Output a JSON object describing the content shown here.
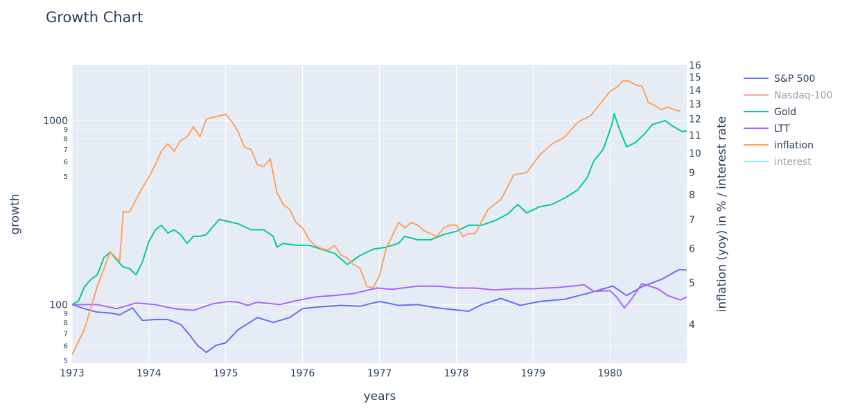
{
  "chart_data": {
    "type": "line",
    "title": "Growth Chart",
    "xlabel": "years",
    "ylabel": "growth",
    "y2label": "inflation (yoy) in % / interest rate",
    "x_range": [
      "1973-01-01",
      "1980-12-31"
    ],
    "y_scale": "log",
    "y_range": [
      48,
      2000
    ],
    "y_major_ticks": [
      100,
      1000
    ],
    "y_minor_ticks": [
      5,
      6,
      7,
      8,
      9,
      50,
      60,
      70,
      80,
      90,
      500,
      600,
      700,
      800,
      900
    ],
    "y2_scale": "log",
    "y2_range": [
      3.25,
      16
    ],
    "y2_ticks": [
      4,
      5,
      6,
      7,
      8,
      9,
      10,
      11,
      12,
      13,
      14,
      15,
      16
    ],
    "x_ticks": [
      "1973",
      "1974",
      "1975",
      "1976",
      "1977",
      "1978",
      "1979",
      "1980"
    ],
    "grid": true,
    "legend_placement": "right-top",
    "series": [
      {
        "name": "S&P 500",
        "axis": "y",
        "color": "#636efa",
        "visible": true,
        "points": [
          [
            "1973-01-01",
            100
          ],
          [
            "1973-03-01",
            95
          ],
          [
            "1973-05-01",
            91
          ],
          [
            "1973-07-01",
            90
          ],
          [
            "1973-08-15",
            88
          ],
          [
            "1973-10-15",
            96
          ],
          [
            "1973-12-01",
            82
          ],
          [
            "1974-02-01",
            83
          ],
          [
            "1974-04-01",
            83
          ],
          [
            "1974-06-01",
            78
          ],
          [
            "1974-07-15",
            68
          ],
          [
            "1974-08-20",
            60
          ],
          [
            "1974-10-01",
            55
          ],
          [
            "1974-11-15",
            60
          ],
          [
            "1975-01-01",
            62
          ],
          [
            "1975-03-01",
            73
          ],
          [
            "1975-06-01",
            85
          ],
          [
            "1975-08-15",
            80
          ],
          [
            "1975-11-01",
            85
          ],
          [
            "1976-01-01",
            95
          ],
          [
            "1976-03-15",
            97
          ],
          [
            "1976-07-01",
            99
          ],
          [
            "1976-10-01",
            98
          ],
          [
            "1977-01-01",
            104
          ],
          [
            "1977-04-01",
            99
          ],
          [
            "1977-07-01",
            100
          ],
          [
            "1977-10-01",
            96
          ],
          [
            "1978-03-01",
            92
          ],
          [
            "1978-05-01",
            100
          ],
          [
            "1978-08-01",
            108
          ],
          [
            "1978-11-01",
            99
          ],
          [
            "1979-02-01",
            104
          ],
          [
            "1979-06-01",
            107
          ],
          [
            "1979-09-15",
            115
          ],
          [
            "1980-01-15",
            126
          ],
          [
            "1980-03-20",
            112
          ],
          [
            "1980-06-01",
            125
          ],
          [
            "1980-09-01",
            137
          ],
          [
            "1980-11-25",
            155
          ],
          [
            "1980-12-31",
            154
          ]
        ]
      },
      {
        "name": "Nasdaq-100",
        "axis": "y",
        "color": "#ef553b",
        "visible": false,
        "points": []
      },
      {
        "name": "Gold",
        "axis": "y",
        "color": "#00cc96",
        "visible": true,
        "points": [
          [
            "1973-01-01",
            100
          ],
          [
            "1973-02-01",
            105
          ],
          [
            "1973-03-01",
            125
          ],
          [
            "1973-04-01",
            137
          ],
          [
            "1973-05-01",
            145
          ],
          [
            "1973-06-01",
            180
          ],
          [
            "1973-07-01",
            193
          ],
          [
            "1973-08-01",
            175
          ],
          [
            "1973-09-01",
            160
          ],
          [
            "1973-10-01",
            157
          ],
          [
            "1973-11-01",
            145
          ],
          [
            "1973-12-01",
            170
          ],
          [
            "1974-01-01",
            220
          ],
          [
            "1974-02-01",
            255
          ],
          [
            "1974-03-01",
            270
          ],
          [
            "1974-04-01",
            245
          ],
          [
            "1974-05-01",
            255
          ],
          [
            "1974-06-01",
            240
          ],
          [
            "1974-07-01",
            215
          ],
          [
            "1974-08-01",
            235
          ],
          [
            "1974-09-01",
            235
          ],
          [
            "1974-10-01",
            240
          ],
          [
            "1974-11-01",
            265
          ],
          [
            "1974-12-01",
            290
          ],
          [
            "1975-01-01",
            285
          ],
          [
            "1975-03-01",
            275
          ],
          [
            "1975-05-01",
            255
          ],
          [
            "1975-07-01",
            255
          ],
          [
            "1975-08-15",
            235
          ],
          [
            "1975-09-01",
            205
          ],
          [
            "1975-10-01",
            215
          ],
          [
            "1975-12-01",
            210
          ],
          [
            "1976-02-01",
            210
          ],
          [
            "1976-04-01",
            200
          ],
          [
            "1976-06-01",
            190
          ],
          [
            "1976-08-01",
            165
          ],
          [
            "1976-10-01",
            185
          ],
          [
            "1976-12-01",
            200
          ],
          [
            "1977-02-01",
            205
          ],
          [
            "1977-04-01",
            215
          ],
          [
            "1977-05-01",
            235
          ],
          [
            "1977-07-01",
            225
          ],
          [
            "1977-09-01",
            225
          ],
          [
            "1977-11-01",
            240
          ],
          [
            "1978-01-01",
            250
          ],
          [
            "1978-03-01",
            270
          ],
          [
            "1978-05-01",
            270
          ],
          [
            "1978-07-01",
            285
          ],
          [
            "1978-09-01",
            310
          ],
          [
            "1978-10-20",
            350
          ],
          [
            "1978-12-01",
            315
          ],
          [
            "1979-02-01",
            340
          ],
          [
            "1979-04-01",
            350
          ],
          [
            "1979-06-01",
            380
          ],
          [
            "1979-08-01",
            420
          ],
          [
            "1979-09-15",
            490
          ],
          [
            "1979-10-15",
            600
          ],
          [
            "1979-12-01",
            700
          ],
          [
            "1980-01-10",
            950
          ],
          [
            "1980-01-21",
            1090
          ],
          [
            "1980-02-15",
            900
          ],
          [
            "1980-03-20",
            720
          ],
          [
            "1980-05-01",
            760
          ],
          [
            "1980-06-15",
            850
          ],
          [
            "1980-07-20",
            950
          ],
          [
            "1980-09-20",
            1000
          ],
          [
            "1980-10-20",
            940
          ],
          [
            "1980-12-10",
            870
          ],
          [
            "1980-12-31",
            880
          ]
        ]
      },
      {
        "name": "LTT",
        "axis": "y",
        "color": "#ab63fa",
        "visible": true,
        "points": [
          [
            "1973-01-01",
            100
          ],
          [
            "1973-05-01",
            100
          ],
          [
            "1973-08-01",
            95
          ],
          [
            "1973-11-01",
            102
          ],
          [
            "1974-02-01",
            100
          ],
          [
            "1974-05-01",
            95
          ],
          [
            "1974-08-01",
            93
          ],
          [
            "1974-11-01",
            101
          ],
          [
            "1975-01-15",
            104
          ],
          [
            "1975-03-01",
            103
          ],
          [
            "1975-04-15",
            99
          ],
          [
            "1975-06-01",
            103
          ],
          [
            "1975-09-15",
            100
          ],
          [
            "1975-12-01",
            105
          ],
          [
            "1976-03-01",
            110
          ],
          [
            "1976-06-01",
            112
          ],
          [
            "1976-09-01",
            115
          ],
          [
            "1976-12-20",
            123
          ],
          [
            "1977-03-01",
            121
          ],
          [
            "1977-07-01",
            126
          ],
          [
            "1977-10-01",
            126
          ],
          [
            "1978-01-01",
            123
          ],
          [
            "1978-04-01",
            123
          ],
          [
            "1978-07-01",
            120
          ],
          [
            "1978-10-01",
            122
          ],
          [
            "1979-01-01",
            122
          ],
          [
            "1979-05-01",
            124
          ],
          [
            "1979-09-01",
            128
          ],
          [
            "1979-10-15",
            118
          ],
          [
            "1980-01-01",
            119
          ],
          [
            "1980-02-01",
            110
          ],
          [
            "1980-03-10",
            96
          ],
          [
            "1980-04-15",
            108
          ],
          [
            "1980-06-01",
            130
          ],
          [
            "1980-08-15",
            122
          ],
          [
            "1980-10-01",
            112
          ],
          [
            "1980-12-01",
            106
          ],
          [
            "1980-12-31",
            110
          ]
        ]
      },
      {
        "name": "inflation",
        "axis": "y2",
        "color": "#ffa15a",
        "visible": true,
        "points": [
          [
            "1973-01-01",
            3.4
          ],
          [
            "1973-03-01",
            3.9
          ],
          [
            "1973-05-01",
            4.9
          ],
          [
            "1973-07-01",
            5.9
          ],
          [
            "1973-08-15",
            5.6
          ],
          [
            "1973-09-01",
            7.3
          ],
          [
            "1973-10-01",
            7.3
          ],
          [
            "1973-12-01",
            8.3
          ],
          [
            "1974-01-01",
            8.8
          ],
          [
            "1974-02-01",
            9.4
          ],
          [
            "1974-03-01",
            10.1
          ],
          [
            "1974-04-01",
            10.5
          ],
          [
            "1974-05-01",
            10.1
          ],
          [
            "1974-06-01",
            10.7
          ],
          [
            "1974-07-01",
            10.9
          ],
          [
            "1974-08-01",
            11.5
          ],
          [
            "1974-09-01",
            10.9
          ],
          [
            "1974-10-01",
            12.0
          ],
          [
            "1974-11-01",
            12.1
          ],
          [
            "1974-12-01",
            12.2
          ],
          [
            "1975-01-01",
            12.3
          ],
          [
            "1975-02-01",
            11.8
          ],
          [
            "1975-03-01",
            11.2
          ],
          [
            "1975-04-01",
            10.3
          ],
          [
            "1975-05-01",
            10.2
          ],
          [
            "1975-06-01",
            9.4
          ],
          [
            "1975-07-01",
            9.3
          ],
          [
            "1975-08-01",
            9.7
          ],
          [
            "1975-09-01",
            8.1
          ],
          [
            "1975-10-01",
            7.6
          ],
          [
            "1975-11-01",
            7.4
          ],
          [
            "1975-12-01",
            6.9
          ],
          [
            "1976-01-01",
            6.7
          ],
          [
            "1976-02-01",
            6.3
          ],
          [
            "1976-03-01",
            6.1
          ],
          [
            "1976-04-01",
            6.0
          ],
          [
            "1976-05-01",
            5.95
          ],
          [
            "1976-06-01",
            6.1
          ],
          [
            "1976-07-01",
            5.8
          ],
          [
            "1976-08-01",
            5.7
          ],
          [
            "1976-09-01",
            5.5
          ],
          [
            "1976-10-01",
            5.4
          ],
          [
            "1976-11-01",
            4.9
          ],
          [
            "1976-12-01",
            4.86
          ],
          [
            "1977-01-01",
            5.2
          ],
          [
            "1977-02-01",
            6.0
          ],
          [
            "1977-03-01",
            6.4
          ],
          [
            "1977-04-01",
            6.9
          ],
          [
            "1977-05-01",
            6.7
          ],
          [
            "1977-06-01",
            6.9
          ],
          [
            "1977-07-01",
            6.8
          ],
          [
            "1977-08-01",
            6.6
          ],
          [
            "1977-09-01",
            6.5
          ],
          [
            "1977-10-01",
            6.4
          ],
          [
            "1977-11-01",
            6.7
          ],
          [
            "1977-12-01",
            6.8
          ],
          [
            "1978-01-01",
            6.8
          ],
          [
            "1978-02-01",
            6.4
          ],
          [
            "1978-03-01",
            6.5
          ],
          [
            "1978-04-01",
            6.5
          ],
          [
            "1978-06-01",
            7.4
          ],
          [
            "1978-08-01",
            7.8
          ],
          [
            "1978-10-01",
            8.9
          ],
          [
            "1978-12-01",
            9.0
          ],
          [
            "1979-02-01",
            9.9
          ],
          [
            "1979-04-01",
            10.5
          ],
          [
            "1979-06-01",
            10.9
          ],
          [
            "1979-08-01",
            11.8
          ],
          [
            "1979-10-01",
            12.2
          ],
          [
            "1979-12-01",
            13.3
          ],
          [
            "1980-01-01",
            13.9
          ],
          [
            "1980-02-01",
            14.2
          ],
          [
            "1980-03-01",
            14.7
          ],
          [
            "1980-04-01",
            14.7
          ],
          [
            "1980-05-01",
            14.4
          ],
          [
            "1980-06-01",
            14.3
          ],
          [
            "1980-07-01",
            13.1
          ],
          [
            "1980-08-01",
            12.9
          ],
          [
            "1980-09-01",
            12.6
          ],
          [
            "1980-10-01",
            12.8
          ],
          [
            "1980-11-01",
            12.6
          ],
          [
            "1980-12-01",
            12.5
          ]
        ]
      },
      {
        "name": "interest",
        "axis": "y2",
        "color": "#19d3f3",
        "visible": false,
        "points": []
      }
    ]
  }
}
